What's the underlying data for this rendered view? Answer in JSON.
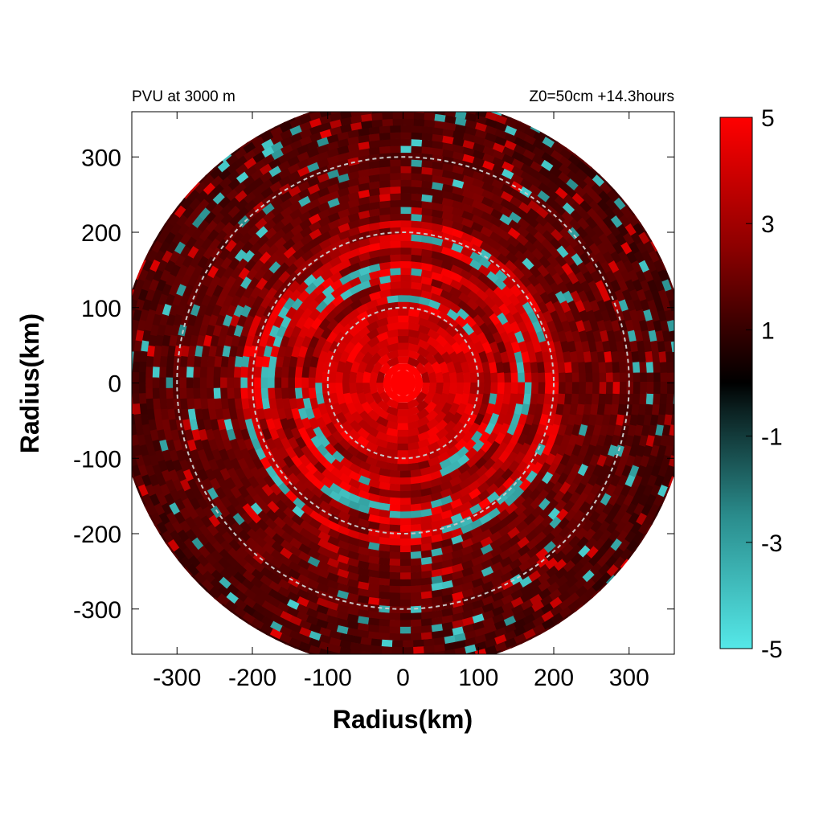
{
  "chart_data": {
    "type": "heatmap",
    "title_left": "PVU at  3000 m",
    "title_right": "Z0=50cm  +14.3hours",
    "xlabel": "Radius(km)",
    "ylabel": "Radius(km)",
    "xlim": [
      -360,
      360
    ],
    "ylim": [
      -360,
      360
    ],
    "x_ticks": [
      -300,
      -200,
      -100,
      0,
      100,
      200,
      300
    ],
    "y_ticks": [
      -300,
      -200,
      -100,
      0,
      100,
      200,
      300
    ],
    "x_tick_labels": [
      "-300",
      "-200",
      "-100",
      "0",
      "100",
      "200",
      "300"
    ],
    "y_tick_labels": [
      "-300",
      "-200",
      "-100",
      "0",
      "100",
      "200",
      "300"
    ],
    "domain_radius_km": 380,
    "reference_circles_km": [
      100,
      200,
      300
    ],
    "colorbar": {
      "range": [
        -5,
        5
      ],
      "ticks": [
        5,
        3,
        1,
        -1,
        -3,
        -5
      ],
      "tick_labels": [
        "5",
        "3",
        "1",
        "-1",
        "-3",
        "-5"
      ],
      "colors": {
        "high": "#ff0000",
        "mid_high": "#8a0000",
        "zero": "#000000",
        "mid_low": "#1d5858",
        "low": "#55e8e8"
      }
    },
    "features": {
      "core_value": 5,
      "core_radius_km": 30,
      "inner_ring_value": 4,
      "inner_region_km": [
        0,
        110
      ],
      "spiral_band_km": [
        110,
        220
      ],
      "outer_value": 1.3,
      "negative_value": -4
    }
  }
}
